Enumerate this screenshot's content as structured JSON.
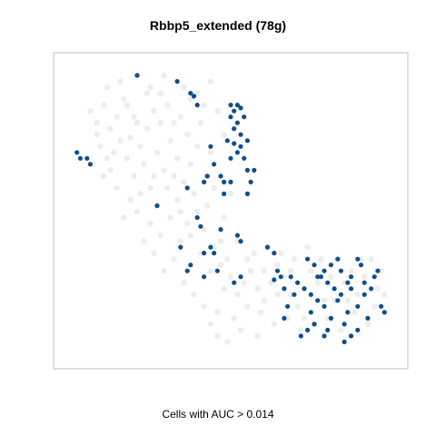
{
  "chart_data": {
    "type": "scatter",
    "title": "Rbbp5_extended (78g)",
    "xlabel": "Cells with AUC > 0.014",
    "ylabel": "",
    "axes_visible": false,
    "grid": false,
    "legend": "none",
    "xlim": [
      0,
      100
    ],
    "ylim": [
      0,
      100
    ],
    "colors": {
      "background": "#e8e8e8",
      "highlight": "#0d4f8b",
      "frame": "#bfbfbf"
    },
    "series": [
      {
        "role": "background",
        "points": [
          [
            8,
            84
          ],
          [
            10,
            80
          ],
          [
            12,
            86
          ],
          [
            14,
            78
          ],
          [
            16,
            82
          ],
          [
            18,
            88
          ],
          [
            20,
            75
          ],
          [
            22,
            80
          ],
          [
            11,
            72
          ],
          [
            15,
            70
          ],
          [
            19,
            68
          ],
          [
            23,
            72
          ],
          [
            25,
            78
          ],
          [
            27,
            84
          ],
          [
            29,
            90
          ],
          [
            31,
            86
          ],
          [
            33,
            80
          ],
          [
            21,
            62
          ],
          [
            24,
            66
          ],
          [
            28,
            70
          ],
          [
            30,
            64
          ],
          [
            26,
            58
          ],
          [
            32,
            74
          ],
          [
            35,
            82
          ],
          [
            36,
            92
          ],
          [
            38,
            88
          ],
          [
            34,
            68
          ],
          [
            37,
            76
          ],
          [
            13,
            92
          ],
          [
            17,
            94
          ],
          [
            22,
            96
          ],
          [
            26,
            92
          ],
          [
            30,
            96
          ],
          [
            9,
            66
          ],
          [
            12,
            62
          ],
          [
            16,
            58
          ],
          [
            20,
            54
          ],
          [
            18,
            48
          ],
          [
            22,
            50
          ],
          [
            26,
            46
          ],
          [
            28,
            52
          ],
          [
            31,
            58
          ],
          [
            33,
            62
          ],
          [
            24,
            40
          ],
          [
            27,
            36
          ],
          [
            29,
            42
          ],
          [
            32,
            48
          ],
          [
            34,
            54
          ],
          [
            36,
            60
          ],
          [
            38,
            66
          ],
          [
            40,
            72
          ],
          [
            41,
            80
          ],
          [
            42,
            86
          ],
          [
            39,
            56
          ],
          [
            43,
            62
          ],
          [
            44,
            70
          ],
          [
            30,
            30
          ],
          [
            33,
            34
          ],
          [
            35,
            40
          ],
          [
            37,
            46
          ],
          [
            40,
            50
          ],
          [
            42,
            44
          ],
          [
            45,
            38
          ],
          [
            47,
            32
          ],
          [
            36,
            26
          ],
          [
            39,
            22
          ],
          [
            42,
            18
          ],
          [
            44,
            12
          ],
          [
            46,
            16
          ],
          [
            48,
            24
          ],
          [
            50,
            28
          ],
          [
            52,
            22
          ],
          [
            54,
            26
          ],
          [
            56,
            30
          ],
          [
            58,
            24
          ],
          [
            60,
            20
          ],
          [
            62,
            26
          ],
          [
            64,
            32
          ],
          [
            66,
            28
          ],
          [
            68,
            22
          ],
          [
            70,
            18
          ],
          [
            72,
            24
          ],
          [
            74,
            30
          ],
          [
            57,
            36
          ],
          [
            61,
            38
          ],
          [
            65,
            36
          ],
          [
            69,
            34
          ],
          [
            73,
            38
          ],
          [
            76,
            26
          ],
          [
            78,
            20
          ],
          [
            80,
            28
          ],
          [
            82,
            34
          ],
          [
            84,
            26
          ],
          [
            86,
            30
          ],
          [
            88,
            22
          ],
          [
            90,
            28
          ],
          [
            92,
            34
          ],
          [
            94,
            24
          ],
          [
            95,
            30
          ],
          [
            75,
            12
          ],
          [
            79,
            14
          ],
          [
            83,
            10
          ],
          [
            87,
            16
          ],
          [
            91,
            12
          ],
          [
            71,
            10
          ],
          [
            67,
            14
          ],
          [
            63,
            12
          ],
          [
            59,
            16
          ],
          [
            55,
            18
          ],
          [
            51,
            14
          ],
          [
            46,
            8
          ],
          [
            49,
            6
          ],
          [
            53,
            10
          ],
          [
            58,
            8
          ],
          [
            25,
            90
          ],
          [
            29,
            80
          ],
          [
            19,
            86
          ],
          [
            14,
            64
          ],
          [
            17,
            74
          ],
          [
            21,
            82
          ],
          [
            23,
            56
          ],
          [
            27,
            62
          ],
          [
            35,
            50
          ],
          [
            38,
            42
          ],
          [
            41,
            36
          ],
          [
            44,
            30
          ],
          [
            47,
            40
          ],
          [
            49,
            34
          ],
          [
            52,
            40
          ],
          [
            55,
            34
          ],
          [
            60,
            30
          ],
          [
            64,
            22
          ],
          [
            68,
            30
          ],
          [
            72,
            14
          ],
          [
            77,
            34
          ],
          [
            81,
            20
          ],
          [
            85,
            20
          ],
          [
            89,
            34
          ],
          [
            93,
            18
          ],
          [
            96,
            22
          ],
          [
            10,
            76
          ],
          [
            13,
            68
          ],
          [
            40,
            90
          ],
          [
            44,
            94
          ],
          [
            46,
            84
          ],
          [
            48,
            76
          ],
          [
            45,
            58
          ],
          [
            48,
            48
          ],
          [
            50,
            56
          ],
          [
            43,
            52
          ]
        ]
      },
      {
        "role": "highlighted",
        "name": "Cells with AUC > 0.014",
        "points": [
          [
            22,
            96
          ],
          [
            34,
            94
          ],
          [
            38,
            90
          ],
          [
            39,
            89
          ],
          [
            40,
            86
          ],
          [
            50,
            86
          ],
          [
            51,
            84
          ],
          [
            52,
            86
          ],
          [
            53,
            85
          ],
          [
            50,
            82
          ],
          [
            52,
            80
          ],
          [
            54,
            82
          ],
          [
            53,
            76
          ],
          [
            51,
            78
          ],
          [
            49,
            74
          ],
          [
            51,
            73
          ],
          [
            53,
            72
          ],
          [
            55,
            74
          ],
          [
            52,
            70
          ],
          [
            54,
            68
          ],
          [
            50,
            68
          ],
          [
            55,
            64
          ],
          [
            57,
            64
          ],
          [
            44,
            72
          ],
          [
            45,
            66
          ],
          [
            43,
            62
          ],
          [
            42,
            60
          ],
          [
            47,
            62
          ],
          [
            48,
            60
          ],
          [
            50,
            60
          ],
          [
            56,
            60
          ],
          [
            37,
            58
          ],
          [
            48,
            56
          ],
          [
            55,
            56
          ],
          [
            28,
            52
          ],
          [
            7,
            68
          ],
          [
            8,
            66
          ],
          [
            4,
            70
          ],
          [
            5,
            68
          ],
          [
            40,
            48
          ],
          [
            41,
            45
          ],
          [
            44,
            38
          ],
          [
            45,
            36
          ],
          [
            35,
            38
          ],
          [
            42,
            36
          ],
          [
            38,
            32
          ],
          [
            37,
            30
          ],
          [
            46,
            30
          ],
          [
            42,
            28
          ],
          [
            52,
            42
          ],
          [
            53,
            40
          ],
          [
            47,
            44
          ],
          [
            53,
            28
          ],
          [
            51,
            26
          ],
          [
            61,
            38
          ],
          [
            63,
            36
          ],
          [
            64,
            30
          ],
          [
            65,
            28
          ],
          [
            63,
            27
          ],
          [
            73,
            34
          ],
          [
            75,
            32
          ],
          [
            77,
            28
          ],
          [
            78,
            30
          ],
          [
            80,
            32
          ],
          [
            82,
            34
          ],
          [
            83,
            30
          ],
          [
            86,
            28
          ],
          [
            88,
            34
          ],
          [
            89,
            32
          ],
          [
            86,
            24
          ],
          [
            90,
            26
          ],
          [
            93,
            28
          ],
          [
            94,
            30
          ],
          [
            92,
            24
          ],
          [
            90,
            22
          ],
          [
            88,
            18
          ],
          [
            85,
            16
          ],
          [
            80,
            14
          ],
          [
            78,
            18
          ],
          [
            76,
            20
          ],
          [
            74,
            22
          ],
          [
            72,
            24
          ],
          [
            70,
            26
          ],
          [
            68,
            28
          ],
          [
            69,
            22
          ],
          [
            74,
            16
          ],
          [
            79,
            10
          ],
          [
            84,
            12
          ],
          [
            88,
            10
          ],
          [
            91,
            14
          ],
          [
            95,
            18
          ],
          [
            96,
            16
          ],
          [
            86,
            8
          ],
          [
            84,
            6
          ],
          [
            78,
            8
          ],
          [
            75,
            12
          ],
          [
            66,
            24
          ],
          [
            67,
            18
          ],
          [
            66,
            14
          ],
          [
            73,
            10
          ],
          [
            71,
            8
          ],
          [
            81,
            24
          ],
          [
            83,
            22
          ],
          [
            85,
            26
          ],
          [
            82,
            20
          ],
          [
            79,
            26
          ],
          [
            76,
            28
          ]
        ]
      }
    ]
  }
}
